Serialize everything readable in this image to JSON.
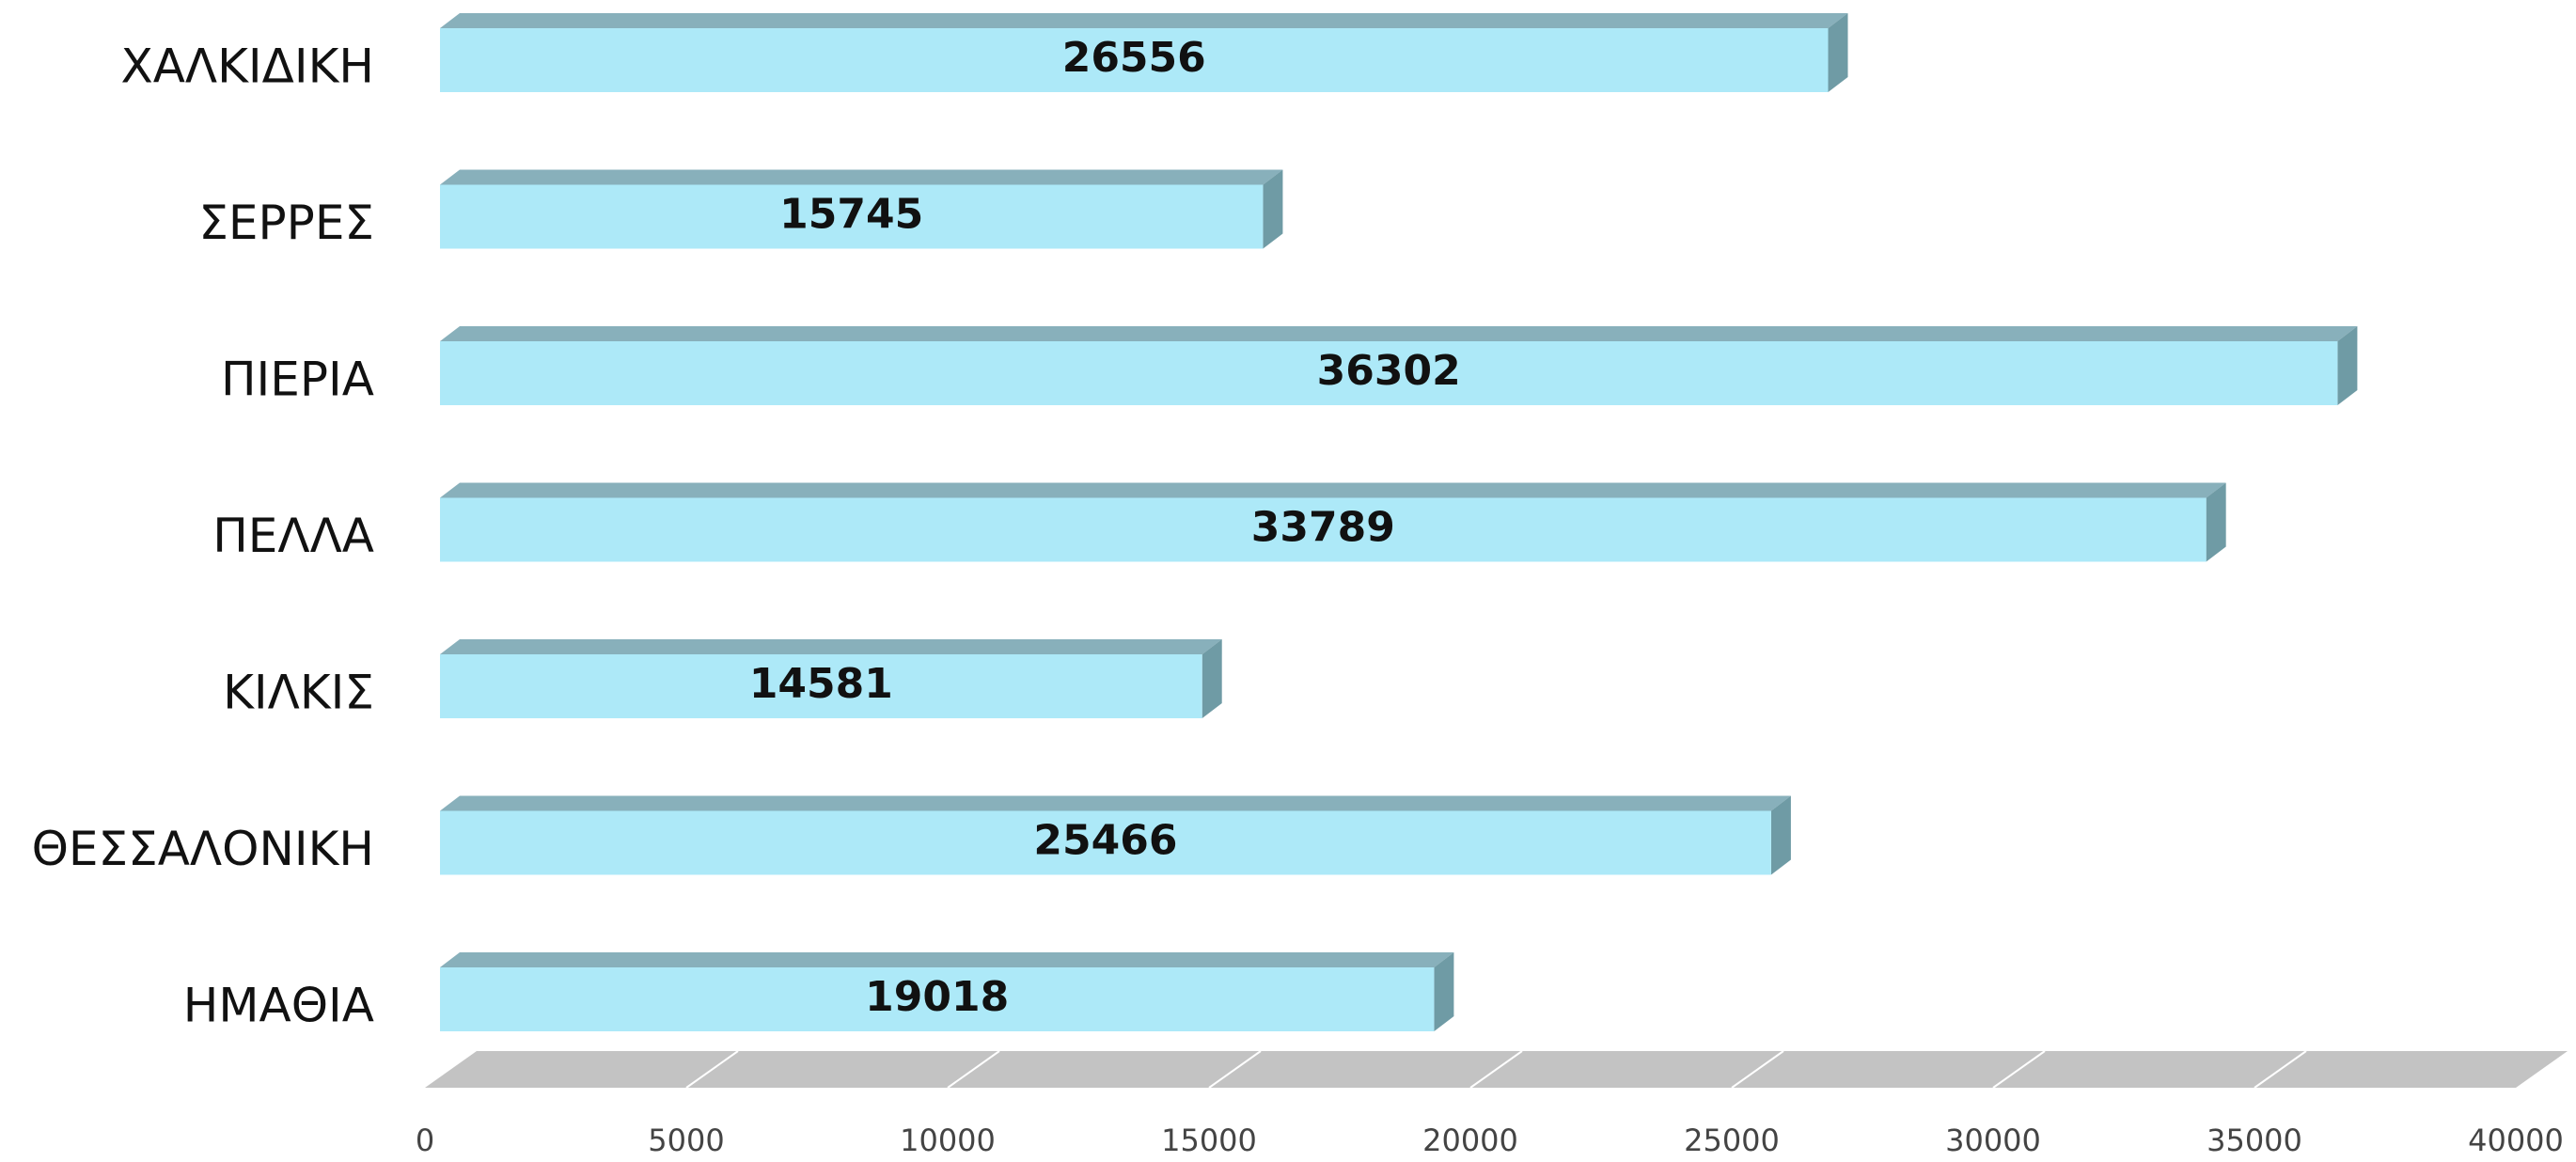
{
  "chart_data": {
    "type": "bar",
    "orientation": "horizontal",
    "categories": [
      "ΧΑΛΚΙΔΙΚΗ",
      "ΣΕΡΡΕΣ",
      "ΠΙΕΡΙΑ",
      "ΠΕΛΛΑ",
      "ΚΙΛΚΙΣ",
      "ΘΕΣΣΑΛΟΝΙΚΗ",
      "ΗΜΑΘΙΑ"
    ],
    "values": [
      26556,
      15745,
      36302,
      33789,
      14581,
      25466,
      19018
    ],
    "color": "#ade9f8",
    "xlim": [
      0,
      40000
    ],
    "xticks": [
      0,
      5000,
      10000,
      15000,
      20000,
      25000,
      30000,
      35000,
      40000
    ],
    "grid": true
  }
}
